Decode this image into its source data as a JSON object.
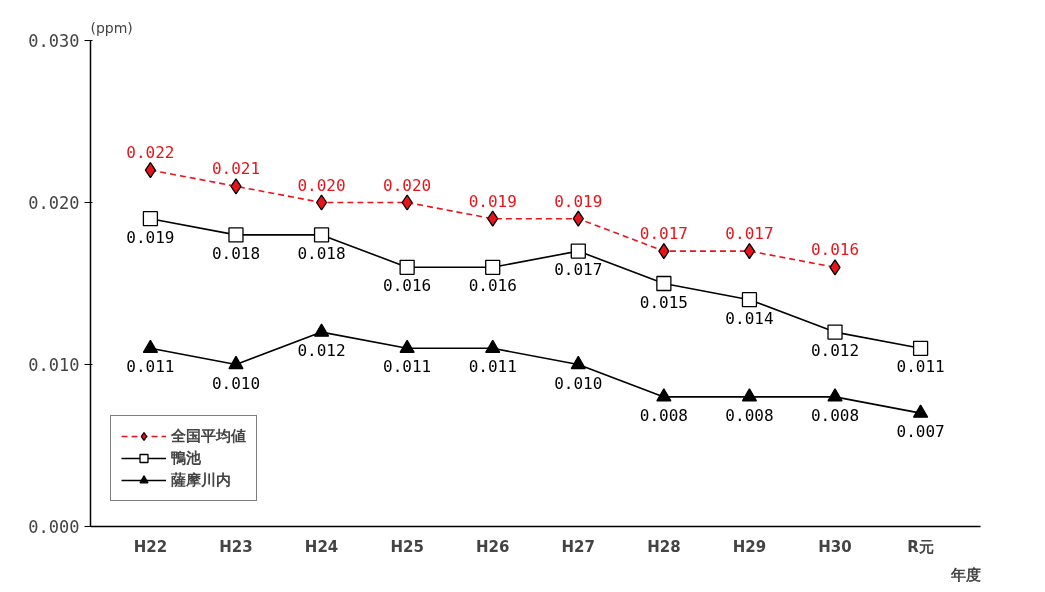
{
  "chart_data": {
    "type": "line",
    "ylabel": "(ppm)",
    "xlabel": "年度",
    "categories": [
      "H22",
      "H23",
      "H24",
      "H25",
      "H26",
      "H27",
      "H28",
      "H29",
      "H30",
      "R元"
    ],
    "series": [
      {
        "name": "全国平均値",
        "color": "#e8141b",
        "values": [
          0.022,
          0.021,
          0.02,
          0.02,
          0.019,
          0.019,
          0.017,
          0.017,
          0.016,
          null
        ],
        "value_labels": [
          "0.022",
          "0.021",
          "0.020",
          "0.020",
          "0.019",
          "0.019",
          "0.017",
          "0.017",
          "0.016",
          null
        ],
        "marker": "diamond",
        "line_style": "dashed"
      },
      {
        "name": "鴨池",
        "color": "#000000",
        "values": [
          0.019,
          0.018,
          0.018,
          0.016,
          0.016,
          0.017,
          0.015,
          0.014,
          0.012,
          0.011
        ],
        "value_labels": [
          "0.019",
          "0.018",
          "0.018",
          "0.016",
          "0.016",
          "0.017",
          "0.015",
          "0.014",
          "0.012",
          "0.011"
        ],
        "marker": "square",
        "line_style": "solid"
      },
      {
        "name": "薩摩川内",
        "color": "#000000",
        "values": [
          0.011,
          0.01,
          0.012,
          0.011,
          0.011,
          0.01,
          0.008,
          0.008,
          0.008,
          0.007
        ],
        "value_labels": [
          "0.011",
          "0.010",
          "0.012",
          "0.011",
          "0.011",
          "0.010",
          "0.008",
          "0.008",
          "0.008",
          "0.007"
        ],
        "marker": "triangle",
        "line_style": "solid"
      }
    ],
    "ylim": [
      0,
      0.03
    ],
    "yticks": [
      {
        "value": 0,
        "label": "0.000"
      },
      {
        "value": 0.01,
        "label": "0.010"
      },
      {
        "value": 0.02,
        "label": "0.020"
      },
      {
        "value": 0.03,
        "label": "0.030"
      }
    ],
    "grid": false,
    "legend": "bottom left"
  }
}
